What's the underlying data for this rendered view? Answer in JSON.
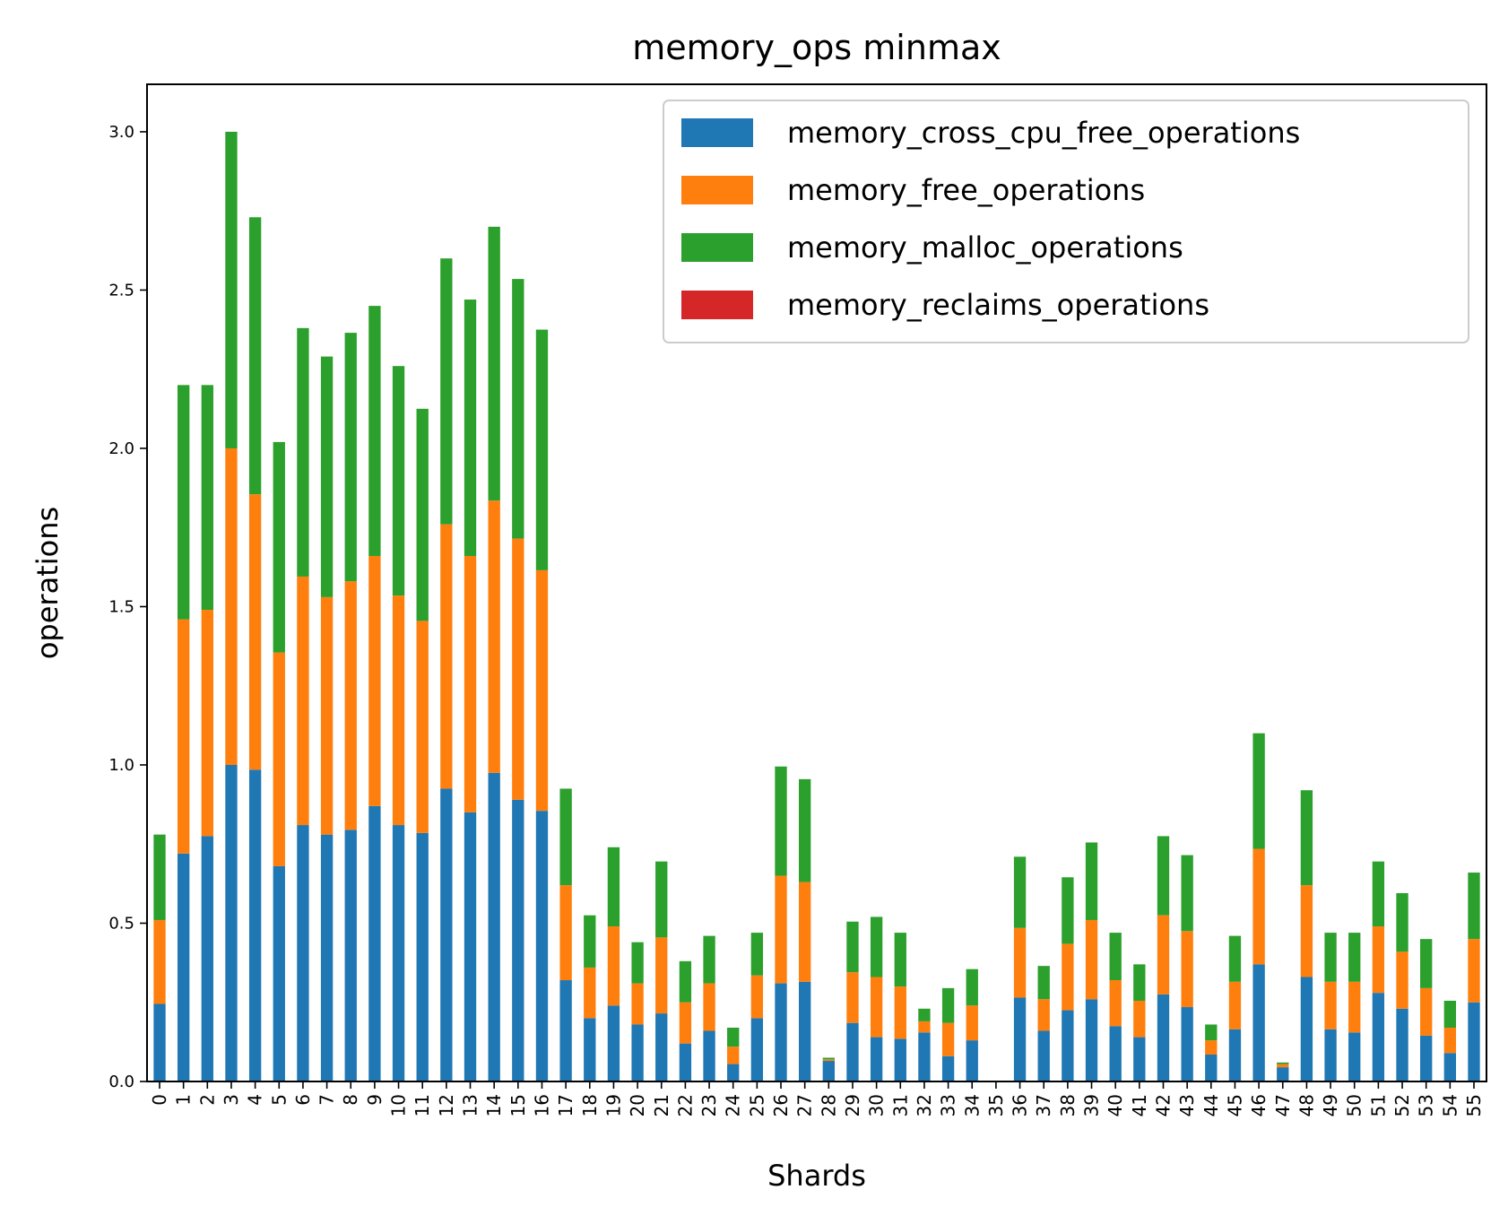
{
  "chart_data": {
    "type": "bar",
    "stacked": true,
    "title": "memory_ops minmax",
    "xlabel": "Shards",
    "ylabel": "operations",
    "ylim": [
      0,
      3.15
    ],
    "yticks": [
      "0.0",
      "0.5",
      "1.0",
      "1.5",
      "2.0",
      "2.5",
      "3.0"
    ],
    "legend_position": "top-right",
    "categories": [
      "0",
      "1",
      "2",
      "3",
      "4",
      "5",
      "6",
      "7",
      "8",
      "9",
      "10",
      "11",
      "12",
      "13",
      "14",
      "15",
      "16",
      "17",
      "18",
      "19",
      "20",
      "21",
      "22",
      "23",
      "24",
      "25",
      "26",
      "27",
      "28",
      "29",
      "30",
      "31",
      "32",
      "33",
      "34",
      "35",
      "36",
      "37",
      "38",
      "39",
      "40",
      "41",
      "42",
      "43",
      "44",
      "45",
      "46",
      "47",
      "48",
      "49",
      "50",
      "51",
      "52",
      "53",
      "54",
      "55"
    ],
    "series": [
      {
        "name": "memory_cross_cpu_free_operations",
        "color": "#1f77b4",
        "values": [
          0.245,
          0.72,
          0.775,
          1.0,
          0.985,
          0.68,
          0.81,
          0.78,
          0.795,
          0.87,
          0.81,
          0.785,
          0.925,
          0.85,
          0.975,
          0.89,
          0.855,
          0.32,
          0.2,
          0.24,
          0.18,
          0.215,
          0.12,
          0.16,
          0.055,
          0.2,
          0.31,
          0.315,
          0.065,
          0.185,
          0.14,
          0.135,
          0.155,
          0.08,
          0.13,
          0.0,
          0.265,
          0.16,
          0.225,
          0.26,
          0.175,
          0.14,
          0.275,
          0.235,
          0.085,
          0.165,
          0.37,
          0.045,
          0.33,
          0.165,
          0.155,
          0.28,
          0.23,
          0.145,
          0.09,
          0.25
        ]
      },
      {
        "name": "memory_free_operations",
        "color": "#ff7f0e",
        "values": [
          0.265,
          0.74,
          0.715,
          1.0,
          0.87,
          0.675,
          0.785,
          0.75,
          0.785,
          0.79,
          0.725,
          0.67,
          0.835,
          0.81,
          0.86,
          0.825,
          0.76,
          0.3,
          0.16,
          0.25,
          0.13,
          0.24,
          0.13,
          0.15,
          0.055,
          0.135,
          0.34,
          0.315,
          0.005,
          0.16,
          0.19,
          0.165,
          0.035,
          0.105,
          0.11,
          0.0,
          0.22,
          0.1,
          0.21,
          0.25,
          0.145,
          0.115,
          0.25,
          0.24,
          0.045,
          0.15,
          0.365,
          0.01,
          0.29,
          0.15,
          0.16,
          0.21,
          0.18,
          0.15,
          0.08,
          0.2
        ]
      },
      {
        "name": "memory_malloc_operations",
        "color": "#2ca02c",
        "values": [
          0.27,
          0.74,
          0.71,
          1.0,
          0.875,
          0.665,
          0.785,
          0.76,
          0.785,
          0.79,
          0.725,
          0.67,
          0.84,
          0.81,
          0.865,
          0.82,
          0.76,
          0.305,
          0.165,
          0.25,
          0.13,
          0.24,
          0.13,
          0.15,
          0.06,
          0.135,
          0.345,
          0.325,
          0.005,
          0.16,
          0.19,
          0.17,
          0.04,
          0.11,
          0.115,
          0.0,
          0.225,
          0.105,
          0.21,
          0.245,
          0.15,
          0.115,
          0.25,
          0.24,
          0.05,
          0.145,
          0.365,
          0.005,
          0.3,
          0.155,
          0.155,
          0.205,
          0.185,
          0.155,
          0.085,
          0.21
        ]
      },
      {
        "name": "memory_reclaims_operations",
        "color": "#d62728",
        "values": [
          0,
          0,
          0,
          0,
          0,
          0,
          0,
          0,
          0,
          0,
          0,
          0,
          0,
          0,
          0,
          0,
          0,
          0,
          0,
          0,
          0,
          0,
          0,
          0,
          0,
          0,
          0,
          0,
          0,
          0,
          0,
          0,
          0,
          0,
          0,
          0,
          0,
          0,
          0,
          0,
          0,
          0,
          0,
          0,
          0,
          0,
          0,
          0,
          0,
          0,
          0,
          0,
          0,
          0,
          0,
          0
        ]
      }
    ]
  }
}
